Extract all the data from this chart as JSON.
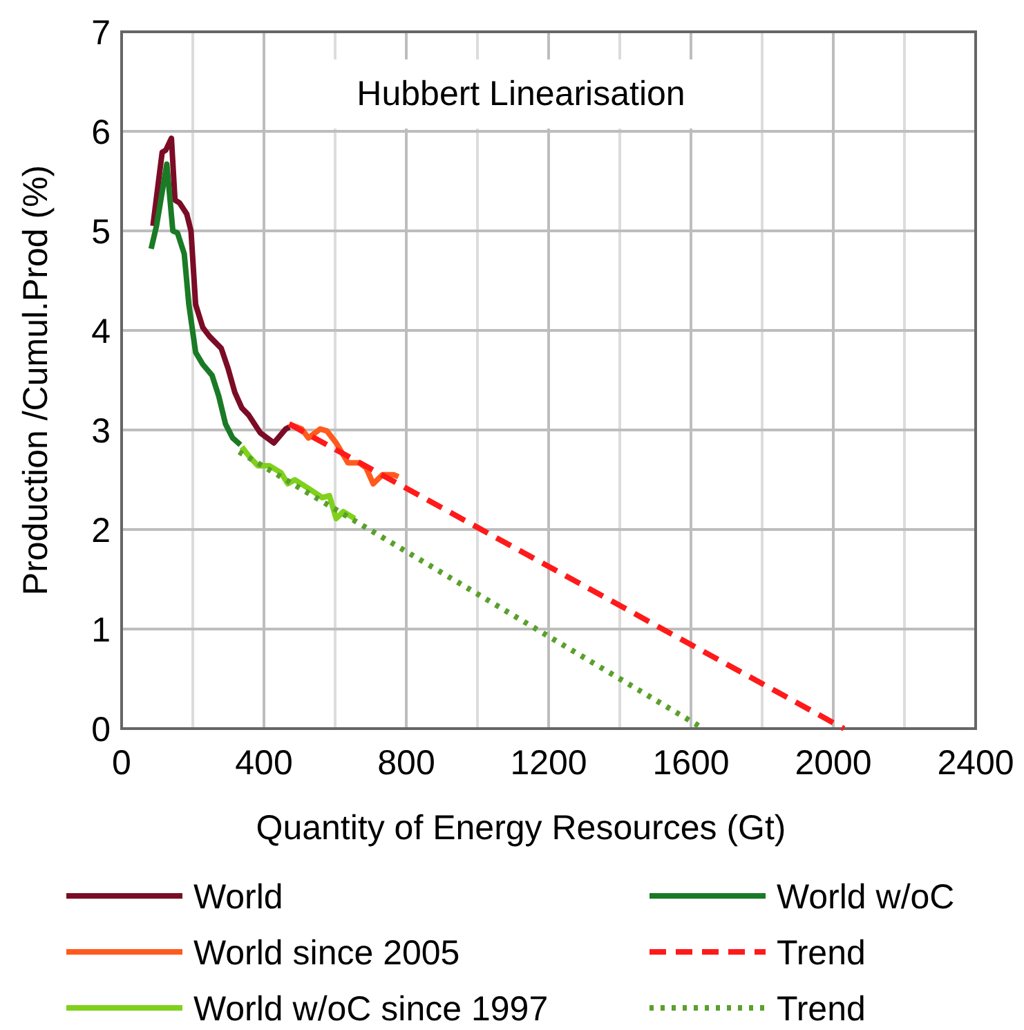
{
  "chart_data": {
    "type": "line",
    "title": "Hubbert Linearisation",
    "xlabel": "Quantity of Energy Resources (Gt)",
    "ylabel": "Production /Cumul.Prod (%)",
    "xlim": [
      0,
      2400
    ],
    "ylim": [
      0,
      7
    ],
    "xticks": [
      0,
      {
        "value": 200,
        "label": null
      },
      400,
      {
        "value": 600,
        "label": null
      },
      800,
      {
        "value": 1000,
        "label": null
      },
      1200,
      {
        "value": 1400,
        "label": null
      },
      1600,
      {
        "value": 1800,
        "label": null
      },
      2000,
      {
        "value": 2200,
        "label": null
      },
      2400
    ],
    "yticks": [
      0,
      1,
      2,
      3,
      4,
      5,
      6,
      7
    ],
    "grid": true,
    "legend": "bottom",
    "marker": "none",
    "series": [
      {
        "name": "World",
        "color": "#7b0c25",
        "line_style": "solid",
        "x": [
          88,
          114,
          124,
          140,
          150,
          163,
          183,
          195,
          208,
          228,
          247,
          280,
          299,
          318,
          338,
          357,
          390,
          428,
          461,
          472
        ],
        "values": [
          5.05,
          5.79,
          5.81,
          5.93,
          5.31,
          5.28,
          5.17,
          5.0,
          4.26,
          4.03,
          3.94,
          3.82,
          3.62,
          3.38,
          3.22,
          3.15,
          2.97,
          2.87,
          3.01,
          3.03
        ]
      },
      {
        "name": "World w/oC",
        "color": "#1a7a25",
        "line_style": "solid",
        "x": [
          83,
          98,
          127,
          144,
          157,
          176,
          189,
          208,
          228,
          254,
          273,
          292,
          312,
          334
        ],
        "values": [
          4.82,
          5.05,
          5.67,
          5.0,
          4.98,
          4.77,
          4.26,
          3.78,
          3.66,
          3.55,
          3.34,
          3.06,
          2.92,
          2.85
        ]
      },
      {
        "name": "World since 2005",
        "color": "#ff5a1e",
        "line_style": "solid",
        "x": [
          471,
          506,
          525,
          558,
          577,
          603,
          636,
          668,
          687,
          707,
          733,
          765,
          778
        ],
        "values": [
          3.06,
          3.01,
          2.92,
          3.01,
          2.99,
          2.87,
          2.67,
          2.67,
          2.62,
          2.46,
          2.55,
          2.55,
          2.53
        ]
      },
      {
        "name": "Trend",
        "color": "#ff1a1a",
        "line_style": "dashed",
        "x": [
          471,
          2030
        ],
        "values": [
          3.06,
          0
        ]
      },
      {
        "name": "World w/oC since 1997",
        "color": "#7fd11b",
        "line_style": "solid",
        "x": [
          338,
          357,
          383,
          416,
          448,
          467,
          487,
          526,
          564,
          584,
          603,
          623,
          655
        ],
        "values": [
          2.83,
          2.74,
          2.64,
          2.64,
          2.57,
          2.46,
          2.5,
          2.41,
          2.32,
          2.34,
          2.11,
          2.18,
          2.11
        ]
      },
      {
        "name": "Trend",
        "color": "#5aa02c",
        "line_style": "dotted",
        "x": [
          330,
          1635
        ],
        "values": [
          2.78,
          0
        ]
      }
    ]
  }
}
